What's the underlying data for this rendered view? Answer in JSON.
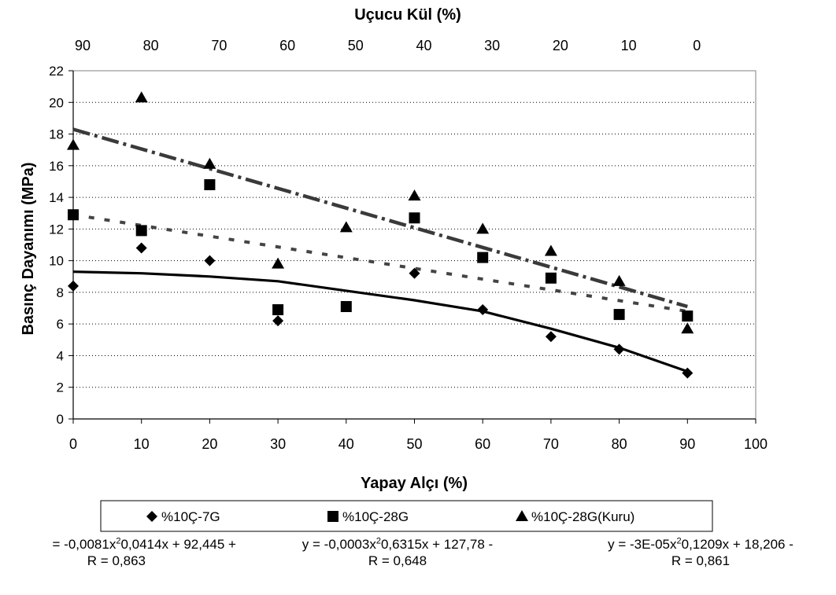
{
  "chart_data": {
    "type": "scatter",
    "title": "",
    "xlabel": "Yapay Alçı (%)",
    "ylabel": "Basınç Dayanımı (MPa)",
    "x2label": "Uçucu Kül (%)",
    "xlim": [
      0,
      100
    ],
    "ylim": [
      0,
      22
    ],
    "xticks": [
      "0",
      "10",
      "20",
      "30",
      "40",
      "50",
      "60",
      "70",
      "80",
      "90",
      "100"
    ],
    "yticks": [
      "0",
      "2",
      "4",
      "6",
      "8",
      "10",
      "12",
      "14",
      "16",
      "18",
      "20",
      "22"
    ],
    "x2ticks": [
      "90",
      "80",
      "70",
      "60",
      "50",
      "40",
      "30",
      "20",
      "10",
      "0"
    ],
    "x2tick_positions": [
      0,
      10,
      20,
      30,
      40,
      50,
      60,
      70,
      80,
      90
    ],
    "grid": "horizontal-dotted",
    "legend_position": "bottom",
    "series": [
      {
        "name": "%10Ç-7G",
        "marker": "diamond",
        "x": [
          0,
          10,
          20,
          30,
          50,
          60,
          70,
          80,
          90
        ],
        "y": [
          8.4,
          10.8,
          10.0,
          6.2,
          9.2,
          6.9,
          5.2,
          4.4,
          2.9
        ],
        "trend": "solid",
        "trend_points": [
          [
            0,
            9.3
          ],
          [
            10,
            9.2
          ],
          [
            20,
            9.0
          ],
          [
            30,
            8.7
          ],
          [
            40,
            8.1
          ],
          [
            50,
            7.5
          ],
          [
            60,
            6.8
          ],
          [
            70,
            5.7
          ],
          [
            80,
            4.5
          ],
          [
            90,
            3.0
          ]
        ]
      },
      {
        "name": "%10Ç-28G",
        "marker": "square",
        "x": [
          0,
          10,
          20,
          30,
          40,
          50,
          60,
          70,
          80,
          90
        ],
        "y": [
          12.9,
          11.9,
          14.8,
          6.9,
          7.1,
          12.7,
          10.2,
          8.9,
          6.6,
          6.5
        ],
        "trend": "dotted",
        "trend_points": [
          [
            0,
            12.9
          ],
          [
            90,
            6.8
          ]
        ]
      },
      {
        "name": "%10Ç-28G(Kuru)",
        "marker": "triangle",
        "x": [
          0,
          10,
          20,
          30,
          40,
          50,
          60,
          70,
          80,
          90
        ],
        "y": [
          17.3,
          20.3,
          16.1,
          9.8,
          12.1,
          14.1,
          12.0,
          10.6,
          8.7,
          5.7
        ],
        "trend": "dash-dot",
        "trend_points": [
          [
            0,
            18.3
          ],
          [
            90,
            7.1
          ]
        ]
      }
    ],
    "equations": [
      {
        "eq_pre": "= -0,0081x",
        "eq_exp": "2",
        "eq_post": "0,0414x + 92,445 +",
        "r": "R = 0,863"
      },
      {
        "eq_pre": "y = -0,0003x",
        "eq_exp": "2",
        "eq_post": "0,6315x + 127,78 -",
        "r": "R = 0,648"
      },
      {
        "eq_pre": "y = -3E-05x",
        "eq_exp": "2",
        "eq_post": "0,1209x + 18,206 -",
        "r": "R = 0,861"
      }
    ]
  }
}
